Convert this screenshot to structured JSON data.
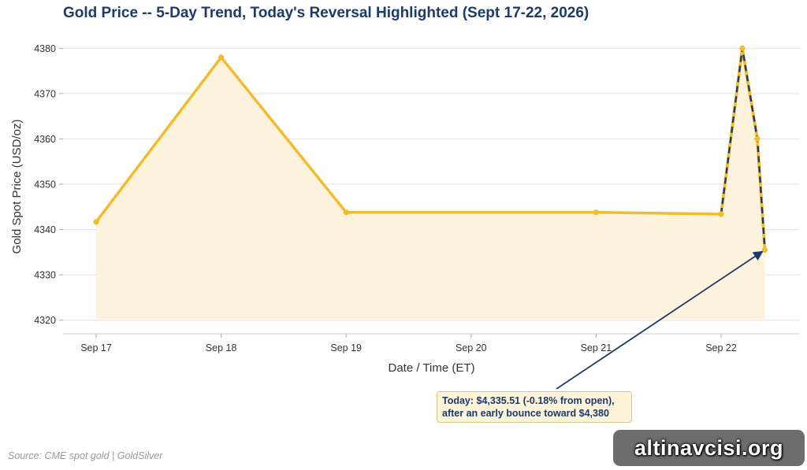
{
  "chart_data": {
    "type": "line",
    "title": "Gold Price -- 5-Day Trend, Today's Reversal Highlighted (Sept 17-22, 2026)",
    "xlabel": "Date / Time (ET)",
    "ylabel": "Gold Spot Price (USD/oz)",
    "ylim": [
      4317,
      4383
    ],
    "yticks": [
      4320,
      4330,
      4340,
      4350,
      4360,
      4370,
      4380
    ],
    "xticks": [
      "Sep 17",
      "Sep 18",
      "Sep 19",
      "Sep 20",
      "Sep 21",
      "Sep 22"
    ],
    "grid": "horizontal",
    "series": [
      {
        "x": [
          0,
          1,
          2,
          4,
          5
        ],
        "values": [
          4341.7,
          4378.0,
          4343.8,
          4343.8,
          4343.4
        ],
        "color": "#f2bc2c",
        "style": "solid"
      },
      {
        "x": [
          5,
          5.17,
          5.29,
          5.35
        ],
        "values": [
          4343.4,
          4380.0,
          4360.0,
          4335.51
        ],
        "color": "#f2bc2c",
        "overlay_color": "#1c3a6b",
        "style": "dashed"
      }
    ],
    "fill_color": "#fdf3dc",
    "annotation": {
      "lines": [
        "Today: $4,335.51 (-0.18% from open),",
        "after an early bounce toward $4,380"
      ],
      "target_x": 5.35,
      "target_y": 4335.51
    }
  },
  "source": "Source: CME spot gold | GoldSilver",
  "watermark": "altinavcisi.org"
}
